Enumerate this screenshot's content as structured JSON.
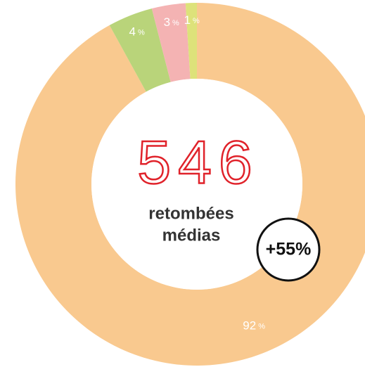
{
  "chart_data": {
    "type": "donut",
    "categories": [
      "orange",
      "green",
      "pink",
      "yellow"
    ],
    "values": [
      92,
      4,
      3,
      1
    ],
    "value_unit": "%",
    "colors": [
      "#f9c98f",
      "#b9d47a",
      "#f4b3b3",
      "#dde27a"
    ],
    "center_number": "546",
    "center_label": [
      "retombées",
      "médias"
    ],
    "badge": "+55%"
  }
}
